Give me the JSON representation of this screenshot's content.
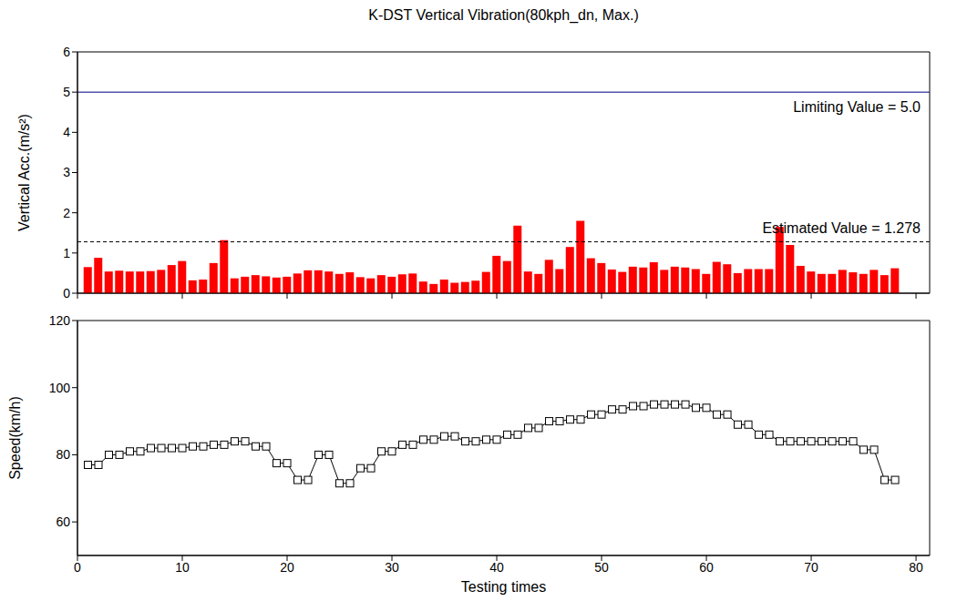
{
  "chart_data": [
    {
      "type": "bar",
      "title": "K-DST Vertical Vibration(80kph_dn, Max.)",
      "x": [
        1,
        2,
        3,
        4,
        5,
        6,
        7,
        8,
        9,
        10,
        11,
        12,
        13,
        14,
        15,
        16,
        17,
        18,
        19,
        20,
        21,
        22,
        23,
        24,
        25,
        26,
        27,
        28,
        29,
        30,
        31,
        32,
        33,
        34,
        35,
        36,
        37,
        38,
        39,
        40,
        41,
        42,
        43,
        44,
        45,
        46,
        47,
        48,
        49,
        50,
        51,
        52,
        53,
        54,
        55,
        56,
        57,
        58,
        59,
        60,
        61,
        62,
        63,
        64,
        65,
        66,
        67,
        68,
        69,
        70,
        71,
        72,
        73,
        74,
        75,
        76,
        77,
        78
      ],
      "values": [
        0.65,
        0.88,
        0.54,
        0.56,
        0.54,
        0.54,
        0.55,
        0.58,
        0.7,
        0.8,
        0.32,
        0.34,
        0.75,
        1.32,
        0.37,
        0.41,
        0.45,
        0.42,
        0.39,
        0.41,
        0.49,
        0.57,
        0.57,
        0.54,
        0.48,
        0.52,
        0.4,
        0.37,
        0.45,
        0.41,
        0.47,
        0.49,
        0.29,
        0.23,
        0.34,
        0.26,
        0.28,
        0.31,
        0.53,
        0.93,
        0.8,
        1.68,
        0.54,
        0.48,
        0.83,
        0.6,
        1.15,
        1.8,
        0.87,
        0.75,
        0.59,
        0.53,
        0.66,
        0.64,
        0.77,
        0.58,
        0.66,
        0.64,
        0.6,
        0.48,
        0.78,
        0.72,
        0.5,
        0.6,
        0.6,
        0.6,
        1.65,
        1.2,
        0.68,
        0.54,
        0.48,
        0.48,
        0.58,
        0.52,
        0.48,
        0.58,
        0.45,
        0.62
      ],
      "color": "#ff0000",
      "xlim": [
        0,
        81.3
      ],
      "xticks": [
        0,
        10,
        20,
        30,
        40,
        50,
        60,
        70,
        80
      ],
      "ylim": [
        0,
        6
      ],
      "yticks": [
        0,
        1,
        2,
        3,
        4,
        5,
        6
      ],
      "ylabel": "Vertical Acc.(m/s²)",
      "tick_labels": "y",
      "annotations": [
        {
          "text": "Limiting Value = 5.0",
          "y": 5.0,
          "color": "#000080",
          "line_style": "solid"
        },
        {
          "text": "Estimated Value = 1.278",
          "y": 1.278,
          "color": "#000000",
          "line_style": "dashed"
        }
      ]
    },
    {
      "type": "line",
      "x": [
        1,
        2,
        3,
        4,
        5,
        6,
        7,
        8,
        9,
        10,
        11,
        12,
        13,
        14,
        15,
        16,
        17,
        18,
        19,
        20,
        21,
        22,
        23,
        24,
        25,
        26,
        27,
        28,
        29,
        30,
        31,
        32,
        33,
        34,
        35,
        36,
        37,
        38,
        39,
        40,
        41,
        42,
        43,
        44,
        45,
        46,
        47,
        48,
        49,
        50,
        51,
        52,
        53,
        54,
        55,
        56,
        57,
        58,
        59,
        60,
        61,
        62,
        63,
        64,
        65,
        66,
        67,
        68,
        69,
        70,
        71,
        72,
        73,
        74,
        75,
        76,
        77,
        78
      ],
      "values": [
        77,
        77,
        80,
        80,
        81,
        81,
        82,
        82,
        82,
        82,
        82.5,
        82.5,
        83,
        83,
        84,
        84,
        82.5,
        82.5,
        77.5,
        77.5,
        72.5,
        72.5,
        80,
        80,
        71.5,
        71.5,
        76,
        76,
        81,
        81,
        83,
        83,
        84.5,
        84.5,
        85.5,
        85.5,
        84,
        84,
        84.5,
        84.5,
        86,
        86,
        88,
        88,
        90,
        90,
        90.5,
        90.5,
        92,
        92,
        93.5,
        93.5,
        94.5,
        94.5,
        95,
        95,
        95,
        95,
        94,
        94,
        92,
        92,
        89,
        89,
        86,
        86,
        84,
        84,
        84,
        84,
        84,
        84,
        84,
        84,
        81.5,
        81.5,
        72.5,
        72.5
      ],
      "color": "#000000",
      "marker": "square",
      "xlim": [
        0,
        81.3
      ],
      "xticks": [
        0,
        10,
        20,
        30,
        40,
        50,
        60,
        70,
        80
      ],
      "ylim": [
        50,
        120
      ],
      "yticks": [
        60,
        80,
        100,
        120
      ],
      "xlabel": "Testing times",
      "ylabel": "Speed(km/h)"
    }
  ]
}
